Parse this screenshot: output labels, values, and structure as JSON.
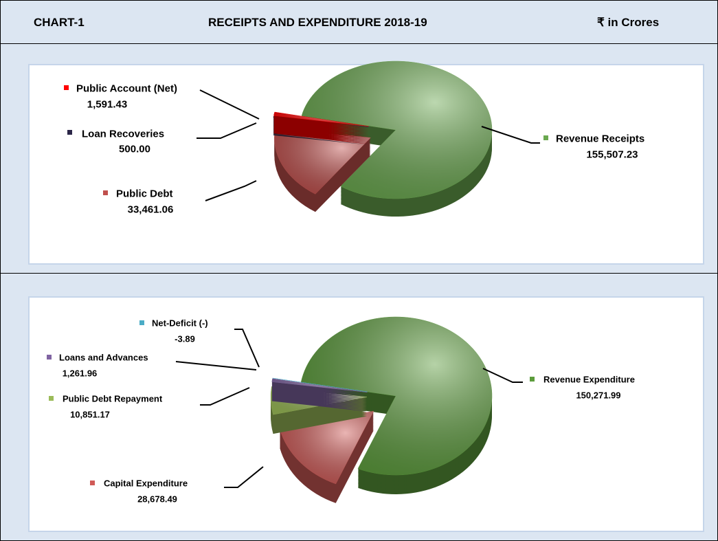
{
  "header": {
    "label": "CHART-1",
    "title": "RECEIPTS AND EXPENDITURE 2018-19",
    "unit": "₹ in Crores"
  },
  "chart_data": [
    {
      "type": "pie",
      "categories": [
        "Revenue Receipts",
        "Public Debt",
        "Loan Recoveries",
        "Public Account (Net)"
      ],
      "values": [
        155507.23,
        33461.06,
        500.0,
        1591.43
      ],
      "value_labels": [
        "155,507.23",
        "33,461.06",
        "500.00",
        "1,591.43"
      ],
      "colors": [
        "#6aa84f",
        "#c0504d",
        "#2b2648",
        "#ff0000"
      ]
    },
    {
      "type": "pie",
      "categories": [
        "Revenue  Expenditure",
        "Capital Expenditure",
        "Public Debt Repayment",
        "Loans and Advances",
        "Net-Deficit (-)"
      ],
      "values": [
        150271.99,
        28678.49,
        10851.17,
        1261.96,
        -3.89
      ],
      "value_labels": [
        "150,271.99",
        "28,678.49",
        "10,851.17",
        "1,261.96",
        "-3.89"
      ],
      "colors": [
        "#5c9c3c",
        "#d05a57",
        "#9bbb59",
        "#8064a2",
        "#4bacc6"
      ]
    }
  ]
}
